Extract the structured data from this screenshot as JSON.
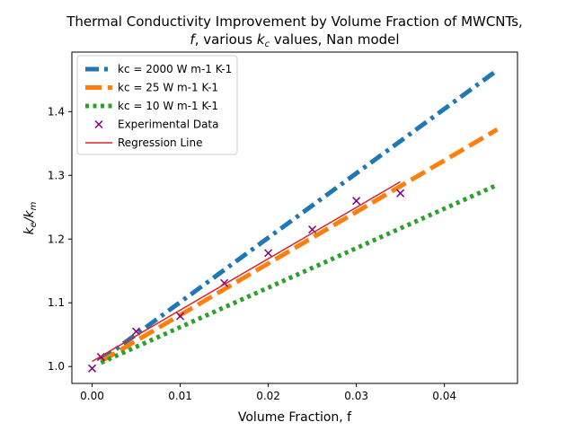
{
  "chart_data": {
    "type": "line",
    "title_line1": "Thermal Conductivity Improvement by Volume Fraction of MWCNTs,",
    "title_line2_italic": "f",
    "title_line2_a": ", various ",
    "title_line2_k": "k",
    "title_line2_sub": "c",
    "title_line2_b": " values, Nan model",
    "xlabel": "Volume Fraction, f",
    "ylabel_k": "k",
    "ylabel_e": "e",
    "ylabel_slash": "/k",
    "ylabel_m": "m",
    "xlim": [
      -0.0023,
      0.0483
    ],
    "ylim": [
      0.9735,
      1.4935
    ],
    "xticks": [
      0.0,
      0.01,
      0.02,
      0.03,
      0.04
    ],
    "xtick_labels": [
      "0.00",
      "0.01",
      "0.02",
      "0.03",
      "0.04"
    ],
    "yticks": [
      1.0,
      1.1,
      1.2,
      1.3,
      1.4
    ],
    "ytick_labels": [
      "1.0",
      "1.1",
      "1.2",
      "1.3",
      "1.4"
    ],
    "grid": false,
    "legend_position": "top-left",
    "series": [
      {
        "name": "kc = 2000 W m-1 K-1",
        "style": "dashdot",
        "color": "#1f77b4",
        "x": [
          0.001,
          0.046
        ],
        "y": [
          1.01,
          1.465
        ]
      },
      {
        "name": "kc = 25 W m-1 K-1",
        "style": "dashed",
        "color": "#ff7f0e",
        "x": [
          0.001,
          0.046
        ],
        "y": [
          1.008,
          1.372
        ]
      },
      {
        "name": "kc = 10 W m-1 K-1",
        "style": "dotted",
        "color": "#2ca02c",
        "x": [
          0.001,
          0.046
        ],
        "y": [
          1.006,
          1.285
        ]
      },
      {
        "name": "Experimental Data",
        "style": "marker-x",
        "color": "#800080",
        "x": [
          0.0,
          0.001,
          0.005,
          0.01,
          0.015,
          0.02,
          0.025,
          0.03,
          0.035
        ],
        "y": [
          0.997,
          1.015,
          1.055,
          1.079,
          1.131,
          1.178,
          1.215,
          1.26,
          1.272
        ]
      },
      {
        "name": "Regression Line",
        "style": "solid",
        "color": "#d62728",
        "x": [
          0.0,
          0.035
        ],
        "y": [
          1.008,
          1.29
        ]
      }
    ]
  }
}
